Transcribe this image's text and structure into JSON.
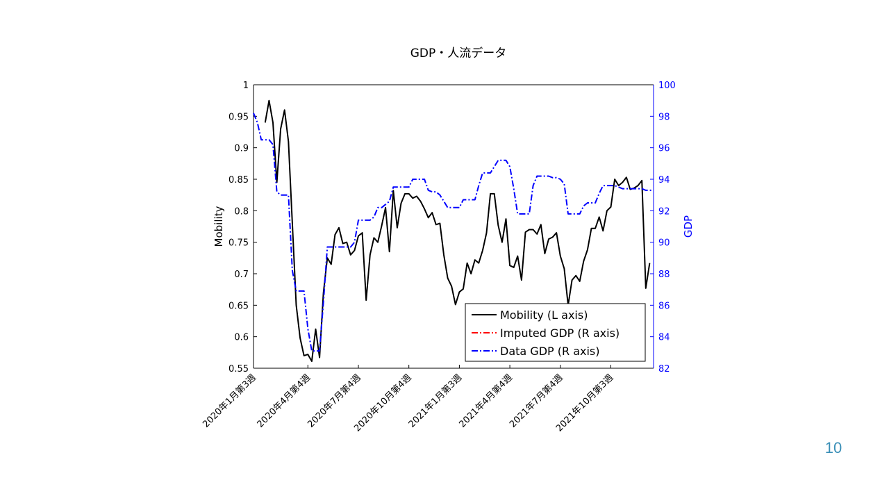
{
  "slide": {
    "page_number": "10"
  },
  "chart_data": {
    "type": "line",
    "title": "GDP・人流データ",
    "xlabel": "",
    "ylabel_left": "Mobility",
    "ylabel_right": "GDP",
    "ylim_left": [
      0.55,
      1
    ],
    "ylim_right": [
      82,
      100
    ],
    "left_ticks": [
      "0.55",
      "0.6",
      "0.65",
      "0.7",
      "0.75",
      "0.8",
      "0.85",
      "0.9",
      "0.95",
      "1"
    ],
    "right_ticks": [
      "82",
      "84",
      "86",
      "88",
      "90",
      "92",
      "94",
      "96",
      "98",
      "100"
    ],
    "x_tick_labels": [
      "2020年1月第3週",
      "2020年4月第4週",
      "2020年7月第4週",
      "2020年10月第4週",
      "2021年1月第3週",
      "2021年4月第4週",
      "2021年7月第4週",
      "2021年10月第3週"
    ],
    "x_tick_index": [
      0,
      14,
      27,
      40,
      53,
      66,
      79,
      92
    ],
    "n_weeks": 104,
    "grid": false,
    "legend_position": "bottom-right",
    "colors": {
      "mobility": "#000000",
      "imputed_gdp": "#ff0000",
      "data_gdp": "#0000ff",
      "right_axis": "#0000ff"
    },
    "series": [
      {
        "name": "Mobility (L axis)",
        "axis": "left",
        "style": "solid",
        "points": [
          [
            3,
            0.94
          ],
          [
            4,
            0.975
          ],
          [
            5,
            0.94
          ],
          [
            6,
            0.845
          ],
          [
            7,
            0.93
          ],
          [
            8,
            0.96
          ],
          [
            9,
            0.91
          ],
          [
            10,
            0.78
          ],
          [
            11,
            0.65
          ],
          [
            12,
            0.598
          ],
          [
            13,
            0.57
          ],
          [
            14,
            0.572
          ],
          [
            15,
            0.561
          ],
          [
            16,
            0.612
          ],
          [
            17,
            0.567
          ],
          [
            18,
            0.67
          ],
          [
            19,
            0.725
          ],
          [
            20,
            0.715
          ],
          [
            21,
            0.762
          ],
          [
            22,
            0.773
          ],
          [
            23,
            0.748
          ],
          [
            24,
            0.75
          ],
          [
            25,
            0.73
          ],
          [
            26,
            0.737
          ],
          [
            27,
            0.76
          ],
          [
            28,
            0.765
          ],
          [
            29,
            0.658
          ],
          [
            30,
            0.73
          ],
          [
            31,
            0.757
          ],
          [
            32,
            0.75
          ],
          [
            33,
            0.776
          ],
          [
            34,
            0.805
          ],
          [
            35,
            0.735
          ],
          [
            36,
            0.832
          ],
          [
            37,
            0.773
          ],
          [
            38,
            0.812
          ],
          [
            39,
            0.827
          ],
          [
            40,
            0.827
          ],
          [
            41,
            0.82
          ],
          [
            42,
            0.823
          ],
          [
            43,
            0.815
          ],
          [
            44,
            0.803
          ],
          [
            45,
            0.789
          ],
          [
            46,
            0.797
          ],
          [
            47,
            0.778
          ],
          [
            48,
            0.78
          ],
          [
            49,
            0.73
          ],
          [
            50,
            0.693
          ],
          [
            51,
            0.68
          ],
          [
            52,
            0.651
          ],
          [
            53,
            0.671
          ],
          [
            54,
            0.676
          ],
          [
            55,
            0.717
          ],
          [
            56,
            0.7
          ],
          [
            57,
            0.722
          ],
          [
            58,
            0.717
          ],
          [
            59,
            0.737
          ],
          [
            60,
            0.765
          ],
          [
            61,
            0.827
          ],
          [
            62,
            0.827
          ],
          [
            63,
            0.777
          ],
          [
            64,
            0.75
          ],
          [
            65,
            0.787
          ],
          [
            66,
            0.713
          ],
          [
            67,
            0.71
          ],
          [
            68,
            0.728
          ],
          [
            69,
            0.69
          ],
          [
            70,
            0.766
          ],
          [
            71,
            0.77
          ],
          [
            72,
            0.77
          ],
          [
            73,
            0.763
          ],
          [
            74,
            0.778
          ],
          [
            75,
            0.732
          ],
          [
            76,
            0.755
          ],
          [
            77,
            0.758
          ],
          [
            78,
            0.765
          ],
          [
            79,
            0.728
          ],
          [
            80,
            0.708
          ],
          [
            81,
            0.65
          ],
          [
            82,
            0.69
          ],
          [
            83,
            0.697
          ],
          [
            84,
            0.688
          ],
          [
            85,
            0.72
          ],
          [
            86,
            0.738
          ],
          [
            87,
            0.772
          ],
          [
            88,
            0.772
          ],
          [
            89,
            0.79
          ],
          [
            90,
            0.768
          ],
          [
            91,
            0.8
          ],
          [
            92,
            0.806
          ],
          [
            93,
            0.85
          ],
          [
            94,
            0.84
          ],
          [
            95,
            0.845
          ],
          [
            96,
            0.853
          ],
          [
            97,
            0.834
          ],
          [
            98,
            0.836
          ],
          [
            99,
            0.84
          ],
          [
            100,
            0.848
          ],
          [
            101,
            0.677
          ],
          [
            102,
            0.717
          ]
        ]
      },
      {
        "name": "Imputed GDP (R axis)",
        "axis": "right",
        "style": "dashdot",
        "points": []
      },
      {
        "name": "Data GDP (R axis)",
        "axis": "right",
        "style": "dashdot",
        "points": [
          [
            0,
            98.2
          ],
          [
            1,
            97.6
          ],
          [
            2,
            96.5
          ],
          [
            3,
            96.5
          ],
          [
            4,
            96.5
          ],
          [
            5,
            96.2
          ],
          [
            6,
            93.2
          ],
          [
            7,
            93.0
          ],
          [
            8,
            93.0
          ],
          [
            9,
            93.0
          ],
          [
            10,
            88.2
          ],
          [
            11,
            86.9
          ],
          [
            12,
            86.9
          ],
          [
            13,
            86.9
          ],
          [
            14,
            84.5
          ],
          [
            15,
            83.1
          ],
          [
            16,
            83.1
          ],
          [
            17,
            83.1
          ],
          [
            18,
            86.2
          ],
          [
            19,
            89.7
          ],
          [
            20,
            89.7
          ],
          [
            21,
            89.7
          ],
          [
            22,
            89.7
          ],
          [
            23,
            89.7
          ],
          [
            24,
            89.7
          ],
          [
            25,
            89.7
          ],
          [
            26,
            90.0
          ],
          [
            27,
            91.4
          ],
          [
            28,
            91.4
          ],
          [
            29,
            91.4
          ],
          [
            30,
            91.4
          ],
          [
            31,
            91.6
          ],
          [
            32,
            92.2
          ],
          [
            33,
            92.2
          ],
          [
            34,
            92.4
          ],
          [
            35,
            92.6
          ],
          [
            36,
            93.5
          ],
          [
            37,
            93.5
          ],
          [
            38,
            93.5
          ],
          [
            39,
            93.5
          ],
          [
            40,
            93.5
          ],
          [
            41,
            94.0
          ],
          [
            42,
            94.0
          ],
          [
            43,
            94.0
          ],
          [
            44,
            94.0
          ],
          [
            45,
            93.3
          ],
          [
            46,
            93.2
          ],
          [
            47,
            93.2
          ],
          [
            48,
            93.0
          ],
          [
            49,
            92.6
          ],
          [
            50,
            92.2
          ],
          [
            51,
            92.2
          ],
          [
            52,
            92.2
          ],
          [
            53,
            92.2
          ],
          [
            54,
            92.7
          ],
          [
            55,
            92.7
          ],
          [
            56,
            92.7
          ],
          [
            57,
            92.7
          ],
          [
            58,
            93.6
          ],
          [
            59,
            94.4
          ],
          [
            60,
            94.4
          ],
          [
            61,
            94.4
          ],
          [
            62,
            94.8
          ],
          [
            63,
            95.2
          ],
          [
            64,
            95.2
          ],
          [
            65,
            95.2
          ],
          [
            66,
            94.8
          ],
          [
            67,
            93.4
          ],
          [
            68,
            91.8
          ],
          [
            69,
            91.8
          ],
          [
            70,
            91.8
          ],
          [
            71,
            91.8
          ],
          [
            72,
            93.6
          ],
          [
            73,
            94.2
          ],
          [
            74,
            94.2
          ],
          [
            75,
            94.2
          ],
          [
            76,
            94.2
          ],
          [
            77,
            94.1
          ],
          [
            78,
            94.1
          ],
          [
            79,
            94.0
          ],
          [
            80,
            93.7
          ],
          [
            81,
            91.8
          ],
          [
            82,
            91.8
          ],
          [
            83,
            91.8
          ],
          [
            84,
            91.8
          ],
          [
            85,
            92.3
          ],
          [
            86,
            92.5
          ],
          [
            87,
            92.5
          ],
          [
            88,
            92.5
          ],
          [
            89,
            93.1
          ],
          [
            90,
            93.6
          ],
          [
            91,
            93.6
          ],
          [
            92,
            93.6
          ],
          [
            93,
            93.6
          ],
          [
            94,
            93.5
          ],
          [
            95,
            93.4
          ],
          [
            96,
            93.4
          ],
          [
            97,
            93.4
          ],
          [
            98,
            93.4
          ],
          [
            99,
            93.4
          ],
          [
            100,
            93.4
          ],
          [
            101,
            93.3
          ],
          [
            102,
            93.3
          ],
          [
            103,
            93.3
          ]
        ]
      }
    ]
  }
}
